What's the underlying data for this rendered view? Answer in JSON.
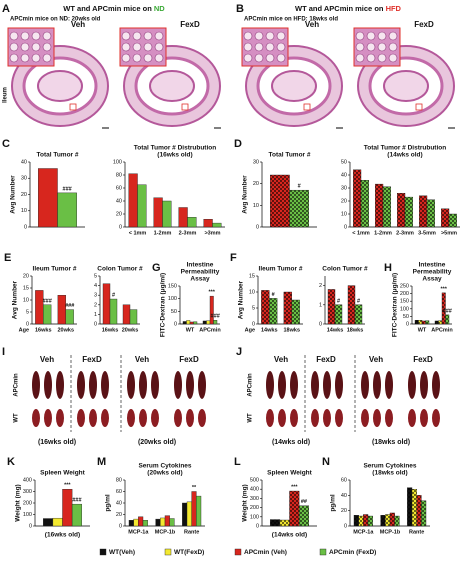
{
  "header": {
    "A": {
      "letter": "A",
      "title": "WT and APCmin mice on ",
      "diet": "ND",
      "subtitle": "APCmin mice on ND: 20wks old",
      "veh": "Veh",
      "fexd": "FexD",
      "side": "Ileum"
    },
    "B": {
      "letter": "B",
      "title": "WT and APCmin mice on ",
      "diet": "HFD",
      "subtitle": "APCmin mice on HFD: 18wks old",
      "veh": "Veh",
      "fexd": "FexD"
    },
    "I": {
      "letter": "I",
      "groups": [
        "Veh",
        "FexD",
        "Veh",
        "FexD"
      ],
      "rows": [
        "APCmin",
        "WT"
      ],
      "ages": [
        "(16wks old)",
        "(20wks old)"
      ]
    },
    "J": {
      "letter": "J",
      "groups": [
        "Veh",
        "FexD",
        "Veh",
        "FexD"
      ],
      "rows": [
        "APCmin",
        "WT"
      ],
      "ages": [
        "(14wks old)",
        "(18wks old)"
      ]
    }
  },
  "legend": [
    {
      "name": "WT(Veh)",
      "color": "#111111"
    },
    {
      "name": "WT(FexD)",
      "color": "#f3e930"
    },
    {
      "name": "APCmin (Veh)",
      "color": "#d7261e"
    },
    {
      "name": "APCmin (FexD)",
      "color": "#6abf45"
    }
  ],
  "chart_data": [
    {
      "type": "bar",
      "panel": "C",
      "title": [
        "Total Tumor #"
      ],
      "ylabel": "Avg Number",
      "categories": [
        null
      ],
      "ylim": [
        0,
        40
      ],
      "yticks": [
        0,
        10,
        20,
        30,
        40
      ],
      "series": [
        {
          "color": "#d7261e",
          "values": [
            36
          ]
        },
        {
          "color": "#6abf45",
          "values": [
            21
          ],
          "sig": [
            "###"
          ]
        }
      ]
    },
    {
      "type": "bar",
      "title": [
        "Total Tumor # Distrubution",
        "(16wks old)"
      ],
      "categories": [
        "< 1mm",
        "1-2mm",
        "2-3mm",
        ">3mm"
      ],
      "ylim": [
        0,
        100
      ],
      "yticks": [
        0,
        20,
        40,
        60,
        80,
        100
      ],
      "series": [
        {
          "color": "#d7261e",
          "values": [
            82,
            45,
            30,
            12
          ]
        },
        {
          "color": "#6abf45",
          "values": [
            65,
            40,
            15,
            6
          ]
        }
      ]
    },
    {
      "type": "bar",
      "panel": "D",
      "title": [
        "Total Tumor #"
      ],
      "ylabel": "Avg Number",
      "categories": [
        null
      ],
      "ylim": [
        0,
        30
      ],
      "yticks": [
        0,
        10,
        20,
        30
      ],
      "hatched": true,
      "series": [
        {
          "color": "#d7261e",
          "values": [
            24
          ]
        },
        {
          "color": "#6abf45",
          "values": [
            17
          ],
          "sig": [
            "#"
          ]
        }
      ]
    },
    {
      "type": "bar",
      "title": [
        "Total Tumor # Distrubution",
        "(14wks old)"
      ],
      "categories": [
        "< 1mm",
        "1-2mm",
        "2-3mm",
        "3-5mm",
        ">5mm"
      ],
      "ylim": [
        0,
        50
      ],
      "yticks": [
        0,
        10,
        20,
        30,
        40,
        50
      ],
      "hatched": true,
      "series": [
        {
          "color": "#d7261e",
          "values": [
            44,
            33,
            26,
            24,
            14
          ]
        },
        {
          "color": "#6abf45",
          "values": [
            36,
            31,
            23,
            21,
            10
          ]
        }
      ]
    },
    {
      "type": "bar",
      "panel": "E",
      "title": [
        "Ileum Tumor #"
      ],
      "ylabel": "Avg Number",
      "x_prefix": "Age",
      "categories": [
        "16wks",
        "20wks"
      ],
      "ylim": [
        0,
        20
      ],
      "yticks": [
        0,
        5,
        10,
        15,
        20
      ],
      "series": [
        {
          "color": "#d7261e",
          "values": [
            14,
            12
          ]
        },
        {
          "color": "#6abf45",
          "values": [
            8,
            6
          ],
          "sig": [
            "###",
            "###"
          ]
        }
      ]
    },
    {
      "type": "bar",
      "title": [
        "Colon Tumor #"
      ],
      "categories": [
        "16wks",
        "20wks"
      ],
      "ylim": [
        0,
        5
      ],
      "yticks": [
        0,
        1,
        2,
        3,
        4,
        5
      ],
      "series": [
        {
          "color": "#d7261e",
          "values": [
            4.2,
            2.0
          ]
        },
        {
          "color": "#6abf45",
          "values": [
            2.6,
            1.5
          ],
          "sig": [
            "#",
            null
          ]
        }
      ]
    },
    {
      "type": "bar",
      "panel": "G",
      "title": [
        "Intestine",
        "Permeability",
        "Assay"
      ],
      "ylabel": "FITC-Dextran (μg/ml)",
      "categories": [
        "WT",
        "APCmin"
      ],
      "ylim": [
        0,
        150
      ],
      "yticks": [
        0,
        50,
        100,
        150
      ],
      "series": [
        {
          "color": "#111111",
          "values": [
            10,
            12
          ]
        },
        {
          "color": "#f3e930",
          "values": [
            14,
            13
          ]
        },
        {
          "color": "#d7261e",
          "values": [
            8,
            110
          ],
          "sig": [
            null,
            "***"
          ]
        },
        {
          "color": "#6abf45",
          "values": [
            9,
            15
          ],
          "sig": [
            null,
            "###"
          ]
        }
      ]
    },
    {
      "type": "bar",
      "panel": "F",
      "title": [
        "Ileum Tumor #"
      ],
      "ylabel": "Avg Number",
      "x_prefix": "Age",
      "categories": [
        "14wks",
        "18wks"
      ],
      "ylim": [
        0,
        15
      ],
      "yticks": [
        0,
        5,
        10,
        15
      ],
      "hatched": true,
      "series": [
        {
          "color": "#d7261e",
          "values": [
            10.5,
            10
          ]
        },
        {
          "color": "#6abf45",
          "values": [
            8,
            7.5
          ],
          "sig": [
            "#",
            null
          ]
        }
      ]
    },
    {
      "type": "bar",
      "title": [
        "Colon Tumor #"
      ],
      "categories": [
        "14wks",
        "18wks"
      ],
      "ylim": [
        0,
        2.5
      ],
      "yticks": [
        0,
        1,
        2
      ],
      "hatched": true,
      "series": [
        {
          "color": "#d7261e",
          "values": [
            1.8,
            2.0
          ]
        },
        {
          "color": "#6abf45",
          "values": [
            1.0,
            1.0
          ],
          "sig": [
            "#",
            "#"
          ]
        }
      ]
    },
    {
      "type": "bar",
      "panel": "H",
      "title": [
        "Intestine",
        "Permeability",
        "Assay"
      ],
      "ylabel": "FITC-Dextran (μg/ml)",
      "categories": [
        "WT",
        "APCmin"
      ],
      "ylim": [
        0,
        250
      ],
      "yticks": [
        0,
        50,
        100,
        150,
        200,
        250
      ],
      "hatched": true,
      "series": [
        {
          "color": "#111111",
          "values": [
            25,
            20
          ]
        },
        {
          "color": "#f3e930",
          "values": [
            25,
            22
          ]
        },
        {
          "color": "#d7261e",
          "values": [
            20,
            205
          ],
          "sig": [
            null,
            "***"
          ]
        },
        {
          "color": "#6abf45",
          "values": [
            22,
            60
          ],
          "sig": [
            null,
            "###"
          ]
        }
      ]
    },
    {
      "type": "bar",
      "panel": "K",
      "title": [
        "Spleen Weight"
      ],
      "ylabel": "Weight (mg)",
      "xlabel": "(16wks old)",
      "categories": [
        null
      ],
      "ylim": [
        0,
        400
      ],
      "yticks": [
        0,
        100,
        200,
        300,
        400
      ],
      "series": [
        {
          "color": "#111111",
          "values": [
            65
          ]
        },
        {
          "color": "#f3e930",
          "values": [
            68
          ]
        },
        {
          "color": "#d7261e",
          "values": [
            320
          ],
          "sig": [
            "***"
          ]
        },
        {
          "color": "#6abf45",
          "values": [
            190
          ],
          "sig": [
            "###"
          ]
        }
      ]
    },
    {
      "type": "bar",
      "panel": "M",
      "title": [
        "Serum Cytokines",
        "(20wks old)"
      ],
      "ylabel": "pg/ml",
      "categories": [
        "MCP-1a",
        "MCP-1b",
        "Rante"
      ],
      "ylim": [
        0,
        80
      ],
      "yticks": [
        0,
        20,
        40,
        60,
        80
      ],
      "series": [
        {
          "color": "#111111",
          "values": [
            10,
            12,
            40
          ]
        },
        {
          "color": "#f3e930",
          "values": [
            12,
            14,
            42
          ]
        },
        {
          "color": "#d7261e",
          "values": [
            16,
            18,
            60
          ],
          "sig": [
            null,
            null,
            "**"
          ]
        },
        {
          "color": "#6abf45",
          "values": [
            10,
            13,
            52
          ]
        }
      ]
    },
    {
      "type": "bar",
      "panel": "L",
      "title": [
        "Spleen Weight"
      ],
      "ylabel": "Weight (mg)",
      "xlabel": "(14wks old)",
      "categories": [
        null
      ],
      "ylim": [
        0,
        500
      ],
      "yticks": [
        0,
        100,
        200,
        300,
        400,
        500
      ],
      "hatched": true,
      "series": [
        {
          "color": "#111111",
          "values": [
            70
          ]
        },
        {
          "color": "#f3e930",
          "values": [
            65
          ]
        },
        {
          "color": "#d7261e",
          "values": [
            380
          ],
          "sig": [
            "***"
          ]
        },
        {
          "color": "#6abf45",
          "values": [
            220
          ],
          "sig": [
            "##"
          ]
        }
      ]
    },
    {
      "type": "bar",
      "panel": "N",
      "title": [
        "Serum Cytokines",
        "(18wks old)"
      ],
      "ylabel": "pg/ml",
      "categories": [
        "MCP-1a",
        "MCP-1b",
        "Rante"
      ],
      "ylim": [
        0,
        60
      ],
      "yticks": [
        0,
        20,
        40,
        60
      ],
      "hatched": true,
      "series": [
        {
          "color": "#111111",
          "values": [
            14,
            14,
            50
          ]
        },
        {
          "color": "#f3e930",
          "values": [
            13,
            15,
            48
          ]
        },
        {
          "color": "#d7261e",
          "values": [
            15,
            17,
            40
          ]
        },
        {
          "color": "#6abf45",
          "values": [
            13,
            13,
            33
          ]
        }
      ]
    }
  ]
}
